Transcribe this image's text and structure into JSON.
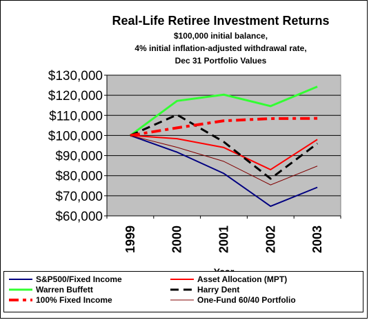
{
  "title": "Real-Life Retiree Investment Returns",
  "subtitle_lines": [
    "$100,000 initial balance,",
    "4% initial inflation-adjusted withdrawal rate,",
    "Dec 31 Portfolio Values"
  ],
  "chart_data": {
    "type": "line",
    "xlabel": "Year",
    "ylabel": "",
    "categories": [
      "1999",
      "2000",
      "2001",
      "2002",
      "2003"
    ],
    "y_ticks": [
      "$60,000",
      "$70,000",
      "$80,000",
      "$90,000",
      "$100,000",
      "$110,000",
      "$120,000",
      "$130,000"
    ],
    "ylim": [
      60000,
      130000
    ],
    "grid": true,
    "legend_position": "bottom",
    "series": [
      {
        "name": "S&P500/Fixed Income",
        "values": [
          100000,
          91700,
          81100,
          64800,
          74200
        ],
        "color": "#000080",
        "style": "solid",
        "width": 2
      },
      {
        "name": "Asset Allocation (MPT)",
        "values": [
          100000,
          98400,
          94000,
          83000,
          98000
        ],
        "color": "#ff0000",
        "style": "solid",
        "width": 2
      },
      {
        "name": "Warren Buffett",
        "values": [
          100000,
          117200,
          120300,
          114600,
          124300
        ],
        "color": "#33ff33",
        "style": "solid",
        "width": 3
      },
      {
        "name": "Harry Dent",
        "values": [
          100000,
          110300,
          96800,
          78500,
          96000
        ],
        "color": "#000000",
        "style": "dashed",
        "width": 3
      },
      {
        "name": "100% Fixed Income",
        "values": [
          100000,
          103800,
          107300,
          108400,
          108500
        ],
        "color": "#ff0000",
        "style": "dashdot",
        "width": 4
      },
      {
        "name": "One-Fund 60/40 Portfolio",
        "values": [
          100000,
          94100,
          87100,
          75400,
          84800
        ],
        "color": "#800000",
        "style": "solid",
        "width": 1
      }
    ]
  }
}
